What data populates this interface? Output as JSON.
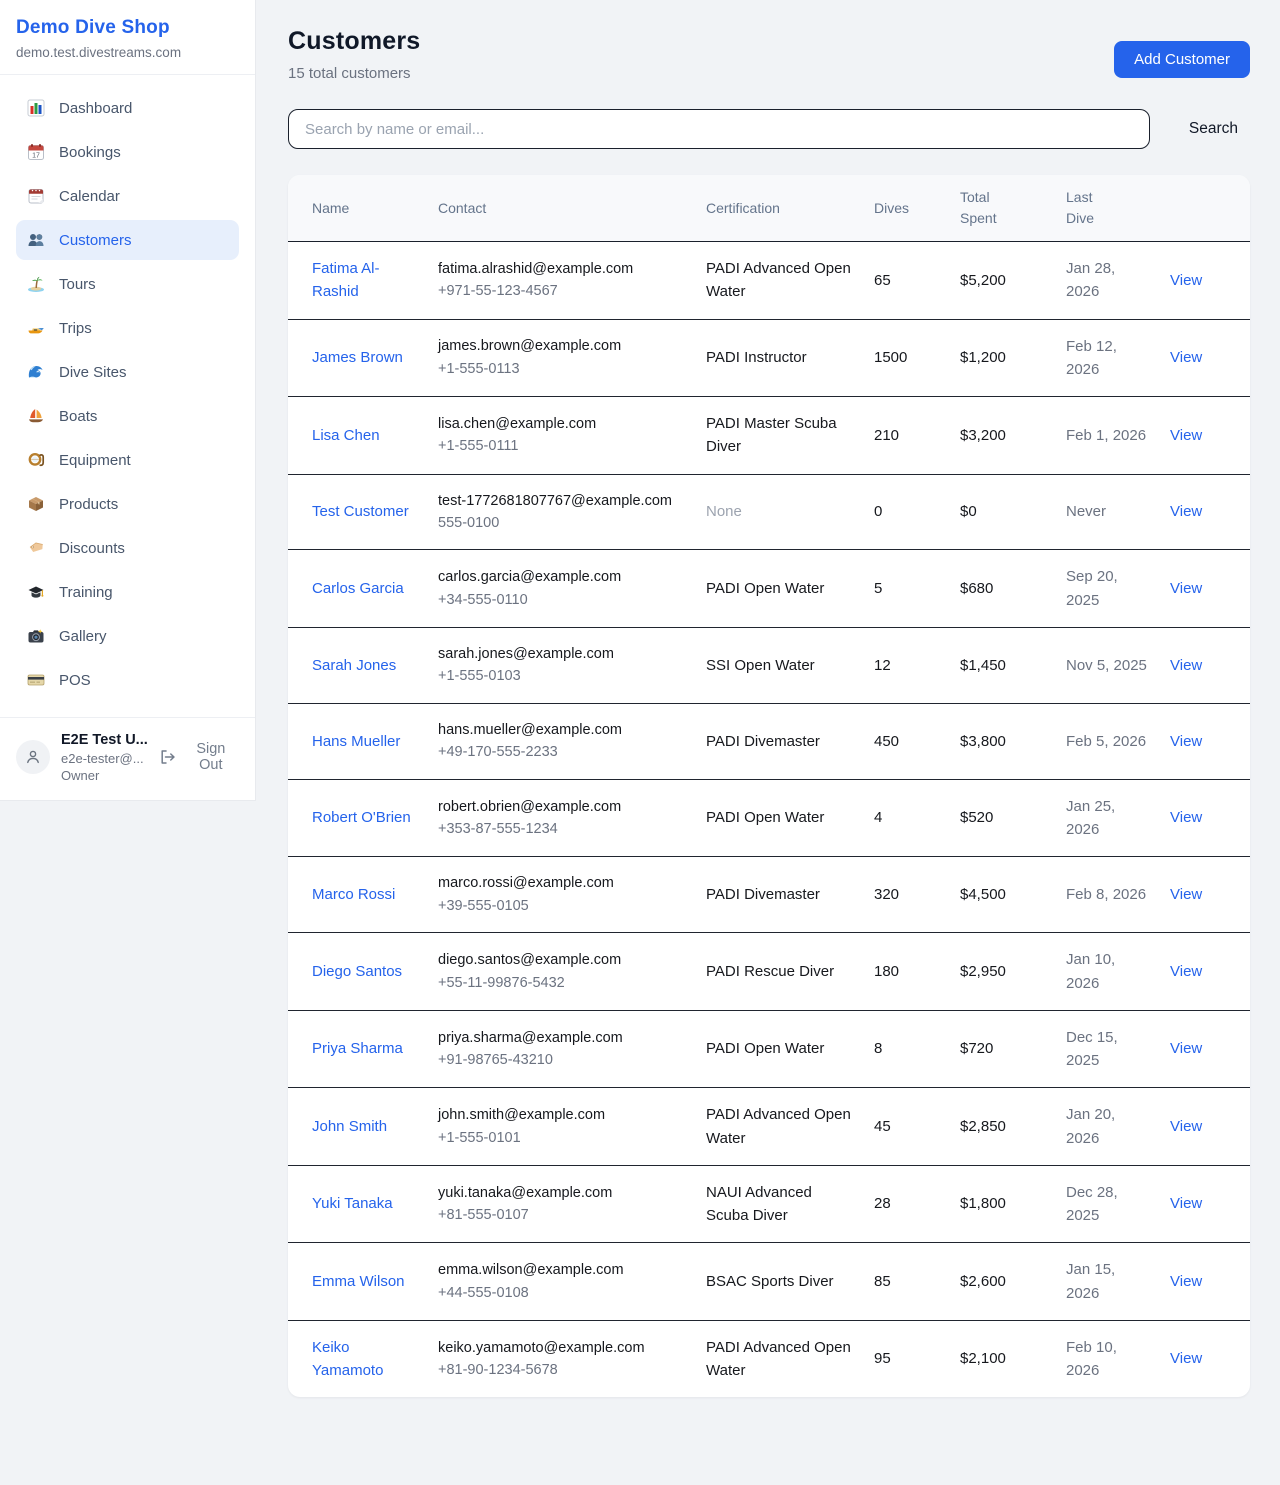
{
  "sidebar": {
    "title": "Demo Dive Shop",
    "subdomain": "demo.test.divestreams.com",
    "nav": [
      {
        "label": "Dashboard",
        "icon": "dashboard",
        "active": false
      },
      {
        "label": "Bookings",
        "icon": "bookings",
        "active": false
      },
      {
        "label": "Calendar",
        "icon": "calendar",
        "active": false
      },
      {
        "label": "Customers",
        "icon": "customers",
        "active": true
      },
      {
        "label": "Tours",
        "icon": "tours",
        "active": false
      },
      {
        "label": "Trips",
        "icon": "trips",
        "active": false
      },
      {
        "label": "Dive Sites",
        "icon": "dive-sites",
        "active": false
      },
      {
        "label": "Boats",
        "icon": "boats",
        "active": false
      },
      {
        "label": "Equipment",
        "icon": "equipment",
        "active": false
      },
      {
        "label": "Products",
        "icon": "products",
        "active": false
      },
      {
        "label": "Discounts",
        "icon": "discounts",
        "active": false
      },
      {
        "label": "Training",
        "icon": "training",
        "active": false
      },
      {
        "label": "Gallery",
        "icon": "gallery",
        "active": false
      },
      {
        "label": "POS",
        "icon": "pos",
        "active": false
      }
    ],
    "user": {
      "name": "E2E Test U...",
      "email": "e2e-tester@...",
      "role": "Owner",
      "sign_out_label": "Sign Out"
    }
  },
  "header": {
    "title": "Customers",
    "subtitle": "15 total customers",
    "add_button_label": "Add Customer"
  },
  "search": {
    "placeholder": "Search by name or email...",
    "button_label": "Search"
  },
  "table": {
    "columns": [
      "Name",
      "Contact",
      "Certification",
      "Dives",
      "Total\nSpent",
      "Last\nDive",
      ""
    ],
    "view_label": "View",
    "rows": [
      {
        "name": "Fatima Al-Rashid",
        "email": "fatima.alrashid@example.com",
        "phone": "+971-55-123-4567",
        "certification": "PADI Advanced Open Water",
        "cert_none": false,
        "dives": "65",
        "total_spent": "$5,200",
        "last_dive": "Jan 28, 2026"
      },
      {
        "name": "James Brown",
        "email": "james.brown@example.com",
        "phone": "+1-555-0113",
        "certification": "PADI Instructor",
        "cert_none": false,
        "dives": "1500",
        "total_spent": "$1,200",
        "last_dive": "Feb 12, 2026"
      },
      {
        "name": "Lisa Chen",
        "email": "lisa.chen@example.com",
        "phone": "+1-555-0111",
        "certification": "PADI Master Scuba Diver",
        "cert_none": false,
        "dives": "210",
        "total_spent": "$3,200",
        "last_dive": "Feb 1, 2026"
      },
      {
        "name": "Test Customer",
        "email": "test-1772681807767@example.com",
        "phone": "555-0100",
        "certification": "None",
        "cert_none": true,
        "dives": "0",
        "total_spent": "$0",
        "last_dive": "Never"
      },
      {
        "name": "Carlos Garcia",
        "email": "carlos.garcia@example.com",
        "phone": "+34-555-0110",
        "certification": "PADI Open Water",
        "cert_none": false,
        "dives": "5",
        "total_spent": "$680",
        "last_dive": "Sep 20, 2025"
      },
      {
        "name": "Sarah Jones",
        "email": "sarah.jones@example.com",
        "phone": "+1-555-0103",
        "certification": "SSI Open Water",
        "cert_none": false,
        "dives": "12",
        "total_spent": "$1,450",
        "last_dive": "Nov 5, 2025"
      },
      {
        "name": "Hans Mueller",
        "email": "hans.mueller@example.com",
        "phone": "+49-170-555-2233",
        "certification": "PADI Divemaster",
        "cert_none": false,
        "dives": "450",
        "total_spent": "$3,800",
        "last_dive": "Feb 5, 2026"
      },
      {
        "name": "Robert O'Brien",
        "email": "robert.obrien@example.com",
        "phone": "+353-87-555-1234",
        "certification": "PADI Open Water",
        "cert_none": false,
        "dives": "4",
        "total_spent": "$520",
        "last_dive": "Jan 25, 2026"
      },
      {
        "name": "Marco Rossi",
        "email": "marco.rossi@example.com",
        "phone": "+39-555-0105",
        "certification": "PADI Divemaster",
        "cert_none": false,
        "dives": "320",
        "total_spent": "$4,500",
        "last_dive": "Feb 8, 2026"
      },
      {
        "name": "Diego Santos",
        "email": "diego.santos@example.com",
        "phone": "+55-11-99876-5432",
        "certification": "PADI Rescue Diver",
        "cert_none": false,
        "dives": "180",
        "total_spent": "$2,950",
        "last_dive": "Jan 10, 2026"
      },
      {
        "name": "Priya Sharma",
        "email": "priya.sharma@example.com",
        "phone": "+91-98765-43210",
        "certification": "PADI Open Water",
        "cert_none": false,
        "dives": "8",
        "total_spent": "$720",
        "last_dive": "Dec 15, 2025"
      },
      {
        "name": "John Smith",
        "email": "john.smith@example.com",
        "phone": "+1-555-0101",
        "certification": "PADI Advanced Open Water",
        "cert_none": false,
        "dives": "45",
        "total_spent": "$2,850",
        "last_dive": "Jan 20, 2026"
      },
      {
        "name": "Yuki Tanaka",
        "email": "yuki.tanaka@example.com",
        "phone": "+81-555-0107",
        "certification": "NAUI Advanced Scuba Diver",
        "cert_none": false,
        "dives": "28",
        "total_spent": "$1,800",
        "last_dive": "Dec 28, 2025"
      },
      {
        "name": "Emma Wilson",
        "email": "emma.wilson@example.com",
        "phone": "+44-555-0108",
        "certification": "BSAC Sports Diver",
        "cert_none": false,
        "dives": "85",
        "total_spent": "$2,600",
        "last_dive": "Jan 15, 2026"
      },
      {
        "name": "Keiko Yamamoto",
        "email": "keiko.yamamoto@example.com",
        "phone": "+81-90-1234-5678",
        "certification": "PADI Advanced Open Water",
        "cert_none": false,
        "dives": "95",
        "total_spent": "$2,100",
        "last_dive": "Feb 10, 2026"
      }
    ]
  },
  "colors": {
    "accent": "#2563eb",
    "active_nav_bg": "#e7effc",
    "row_border": "#1a202c",
    "page_bg": "#f1f3f6",
    "muted_text": "#6b7280"
  }
}
